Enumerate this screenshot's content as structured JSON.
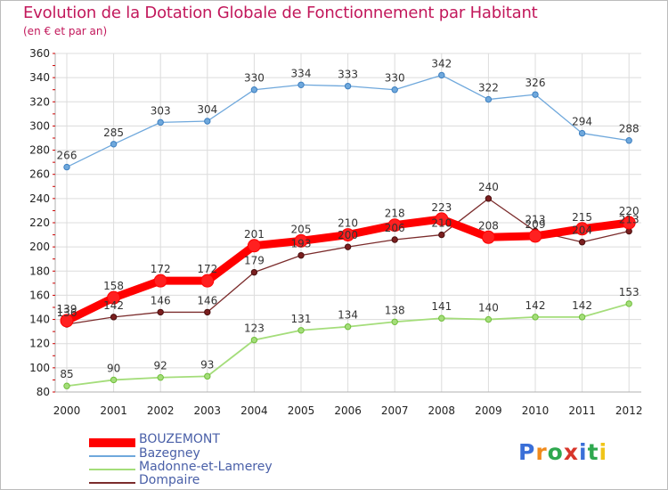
{
  "title": "Evolution de la Dotation Globale de Fonctionnement par Habitant",
  "subtitle": "(en € et par an)",
  "logo": {
    "letters": [
      "P",
      "r",
      "o",
      "x",
      "i",
      "t",
      "i"
    ],
    "colors": [
      "#3a6fd8",
      "#f08a1c",
      "#2fa84f",
      "#d8352a",
      "#3a6fd8",
      "#2fa84f",
      "#f0c419"
    ]
  },
  "chart_data": {
    "type": "line",
    "title": "Evolution de la Dotation Globale de Fonctionnement par Habitant",
    "subtitle": "(en € et par an)",
    "x": [
      "2000",
      "2001",
      "2002",
      "2003",
      "2004",
      "2005",
      "2006",
      "2007",
      "2008",
      "2009",
      "2010",
      "2011",
      "2012"
    ],
    "ylim": [
      80,
      360
    ],
    "yticks": [
      80,
      100,
      120,
      140,
      160,
      180,
      200,
      220,
      240,
      260,
      280,
      300,
      320,
      340,
      360
    ],
    "grid": true,
    "legend": "bottom-left",
    "series": [
      {
        "name": "BOUZEMONT",
        "color": "#ff0000",
        "values": [
          139,
          158,
          172,
          172,
          201,
          205,
          210,
          218,
          223,
          208,
          209,
          215,
          220
        ],
        "labels": [
          "139",
          "158",
          "172",
          "172",
          "201",
          "205",
          "210",
          "218",
          "223",
          "208",
          "209",
          "215",
          "220"
        ]
      },
      {
        "name": "Bazegney",
        "color": "#6fa8dc",
        "values": [
          266,
          285,
          303,
          304,
          330,
          334,
          333,
          330,
          342,
          322,
          326,
          294,
          288
        ],
        "labels": [
          "266",
          "285",
          "303",
          "304",
          "330",
          "334",
          "333",
          "330",
          "342",
          "322",
          "326",
          "294",
          "288"
        ]
      },
      {
        "name": "Madonne-et-Lamerey",
        "color": "#a4dd7a",
        "values": [
          85,
          90,
          92,
          93,
          123,
          131,
          134,
          138,
          141,
          140,
          142,
          142,
          153
        ],
        "labels": [
          "85",
          "90",
          "92",
          "93",
          "123",
          "131",
          "134",
          "138",
          "141",
          "140",
          "142",
          "142",
          "153"
        ]
      },
      {
        "name": "Dompaire",
        "color": "#7b2c2c",
        "values": [
          136,
          142,
          146,
          146,
          179,
          193,
          200,
          206,
          210,
          240,
          213,
          204,
          213
        ],
        "labels": [
          "136",
          "142",
          "146",
          "146",
          "179",
          "193",
          "200",
          "206",
          "210",
          "240",
          "213",
          "204",
          "213"
        ]
      }
    ]
  }
}
